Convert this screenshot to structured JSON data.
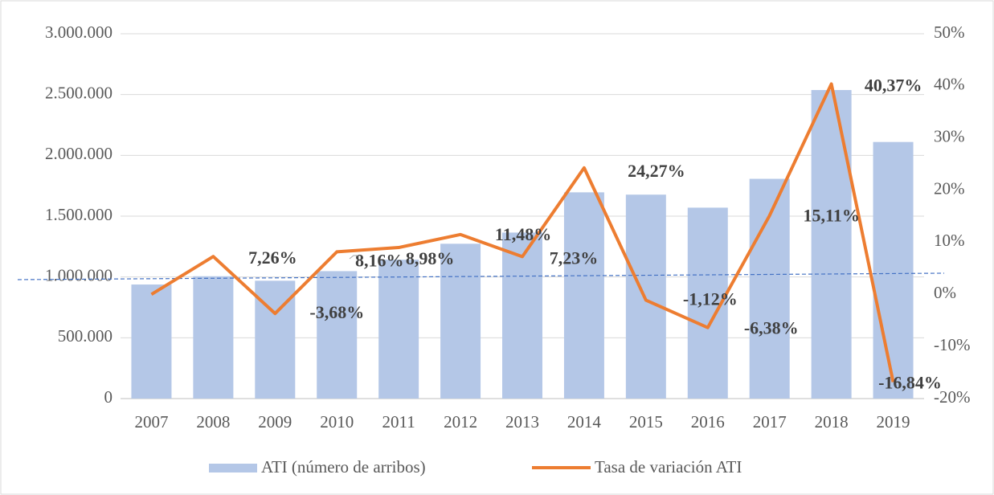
{
  "chart_data": {
    "type": "bar",
    "categories": [
      "2007",
      "2008",
      "2009",
      "2010",
      "2011",
      "2012",
      "2013",
      "2014",
      "2015",
      "2016",
      "2017",
      "2018",
      "2019"
    ],
    "series": [
      {
        "name": "ATI (número de arribos)",
        "type": "bar",
        "color": "#b4c7e7",
        "values": [
          938000,
          1006000,
          969000,
          1048000,
          1142000,
          1273000,
          1365000,
          1696000,
          1677000,
          1570000,
          1807000,
          2537000,
          2110000
        ]
      },
      {
        "name": "Tasa de variación ATI",
        "type": "line",
        "axis": "y2",
        "color": "#ed7d31",
        "values": [
          0,
          7.26,
          -3.68,
          8.16,
          8.98,
          11.48,
          7.23,
          24.27,
          -1.12,
          -6.38,
          15.11,
          40.37,
          -16.84
        ],
        "value_labels": [
          null,
          "7,26%",
          "-3,68%",
          "8,16%",
          "8,98%",
          "11,48%",
          "7,23%",
          "24,27%",
          "-1,12%",
          "-6,38%",
          "15,11%",
          "40,37%",
          "-16,84%"
        ]
      }
    ],
    "trendline": {
      "color": "#4472c4",
      "values": [
        978000,
        1031000
      ]
    },
    "ylim": [
      0,
      3000000
    ],
    "yticks": [
      0,
      {
        "value": 500000,
        "label": "500.000"
      },
      {
        "value": 1000000,
        "label": "1.000.000"
      },
      {
        "value": 1500000,
        "label": "1.500.000"
      },
      {
        "value": 2000000,
        "label": "2.000.000"
      },
      {
        "value": 2500000,
        "label": "2.500.000"
      },
      {
        "value": 3000000,
        "label": "3.000.000"
      }
    ],
    "y2lim": [
      -20,
      50
    ],
    "y2ticks": [
      {
        "value": -20,
        "label": "-20%"
      },
      {
        "value": -10,
        "label": "-10%"
      },
      {
        "value": 0,
        "label": "0%"
      },
      {
        "value": 10,
        "label": "10%"
      },
      {
        "value": 20,
        "label": "20%"
      },
      {
        "value": 30,
        "label": "30%"
      },
      {
        "value": 40,
        "label": "40%"
      },
      {
        "value": 50,
        "label": "50%"
      }
    ],
    "grid": true,
    "legend": "bottom"
  }
}
